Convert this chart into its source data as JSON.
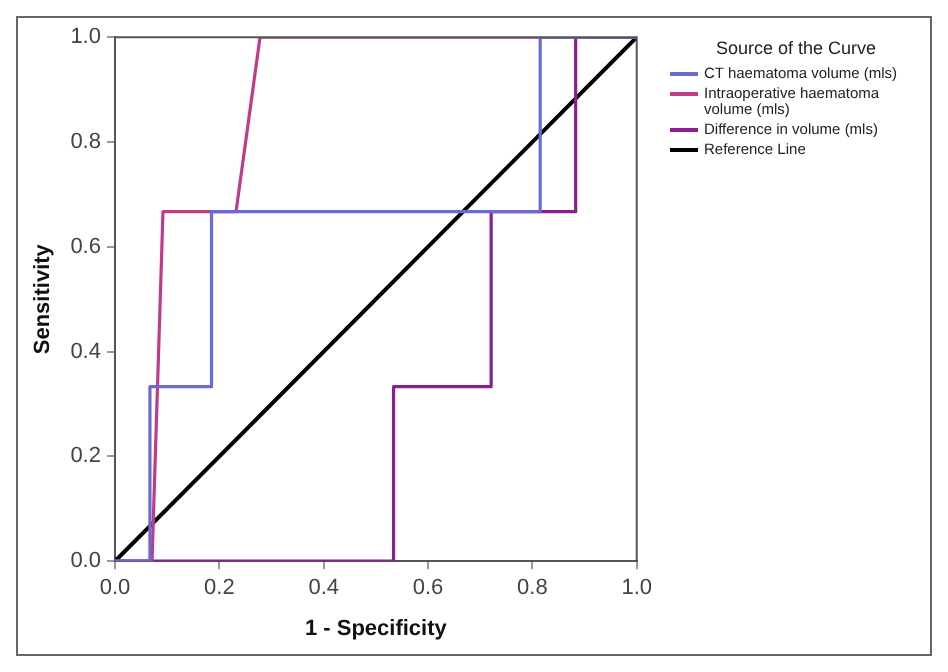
{
  "chart_data": {
    "type": "line",
    "xlabel": "1 - Specificity",
    "ylabel": "Sensitivity",
    "legend_title": "Source of the Curve",
    "legend": "right",
    "grid": false,
    "marker": "none",
    "line_style": "solid",
    "xlim": [
      0,
      1
    ],
    "ylim": [
      0,
      1
    ],
    "xticks": [
      {
        "value": 0,
        "label": "0.0"
      },
      {
        "value": 0.2,
        "label": "0.2"
      },
      {
        "value": 0.4,
        "label": "0.4"
      },
      {
        "value": 0.6,
        "label": "0.6"
      },
      {
        "value": 0.8,
        "label": "0.8"
      },
      {
        "value": 1,
        "label": "1.0"
      }
    ],
    "yticks": [
      {
        "value": 0,
        "label": "0.0"
      },
      {
        "value": 0.2,
        "label": "0.2"
      },
      {
        "value": 0.4,
        "label": "0.4"
      },
      {
        "value": 0.6,
        "label": "0.6"
      },
      {
        "value": 0.8,
        "label": "0.8"
      },
      {
        "value": 1,
        "label": "1.0"
      }
    ],
    "series": [
      {
        "name": "CT haematoma volume (mls)",
        "color": "#6a6ad0",
        "x": [
          0,
          0.067,
          0.067,
          0.185,
          0.185,
          0.815,
          0.815,
          1
        ],
        "values": [
          0,
          0,
          0.333,
          0.333,
          0.667,
          0.667,
          1,
          1
        ]
      },
      {
        "name": "Intraoperative haematoma volume (mls)",
        "color": "#c03a8a",
        "x": [
          0,
          0.071,
          0.092,
          0.232,
          0.278,
          1
        ],
        "values": [
          0,
          0,
          0.667,
          0.667,
          1,
          1
        ]
      },
      {
        "name": "Difference in volume (mls)",
        "color": "#8a1f8f",
        "x": [
          0,
          0.534,
          0.534,
          0.721,
          0.721,
          0.883,
          0.883,
          1
        ],
        "values": [
          0,
          0,
          0.333,
          0.333,
          0.667,
          0.667,
          1,
          1
        ]
      },
      {
        "name": "Reference Line",
        "color": "#000000",
        "x": [
          0,
          1
        ],
        "values": [
          0,
          1
        ]
      }
    ]
  }
}
